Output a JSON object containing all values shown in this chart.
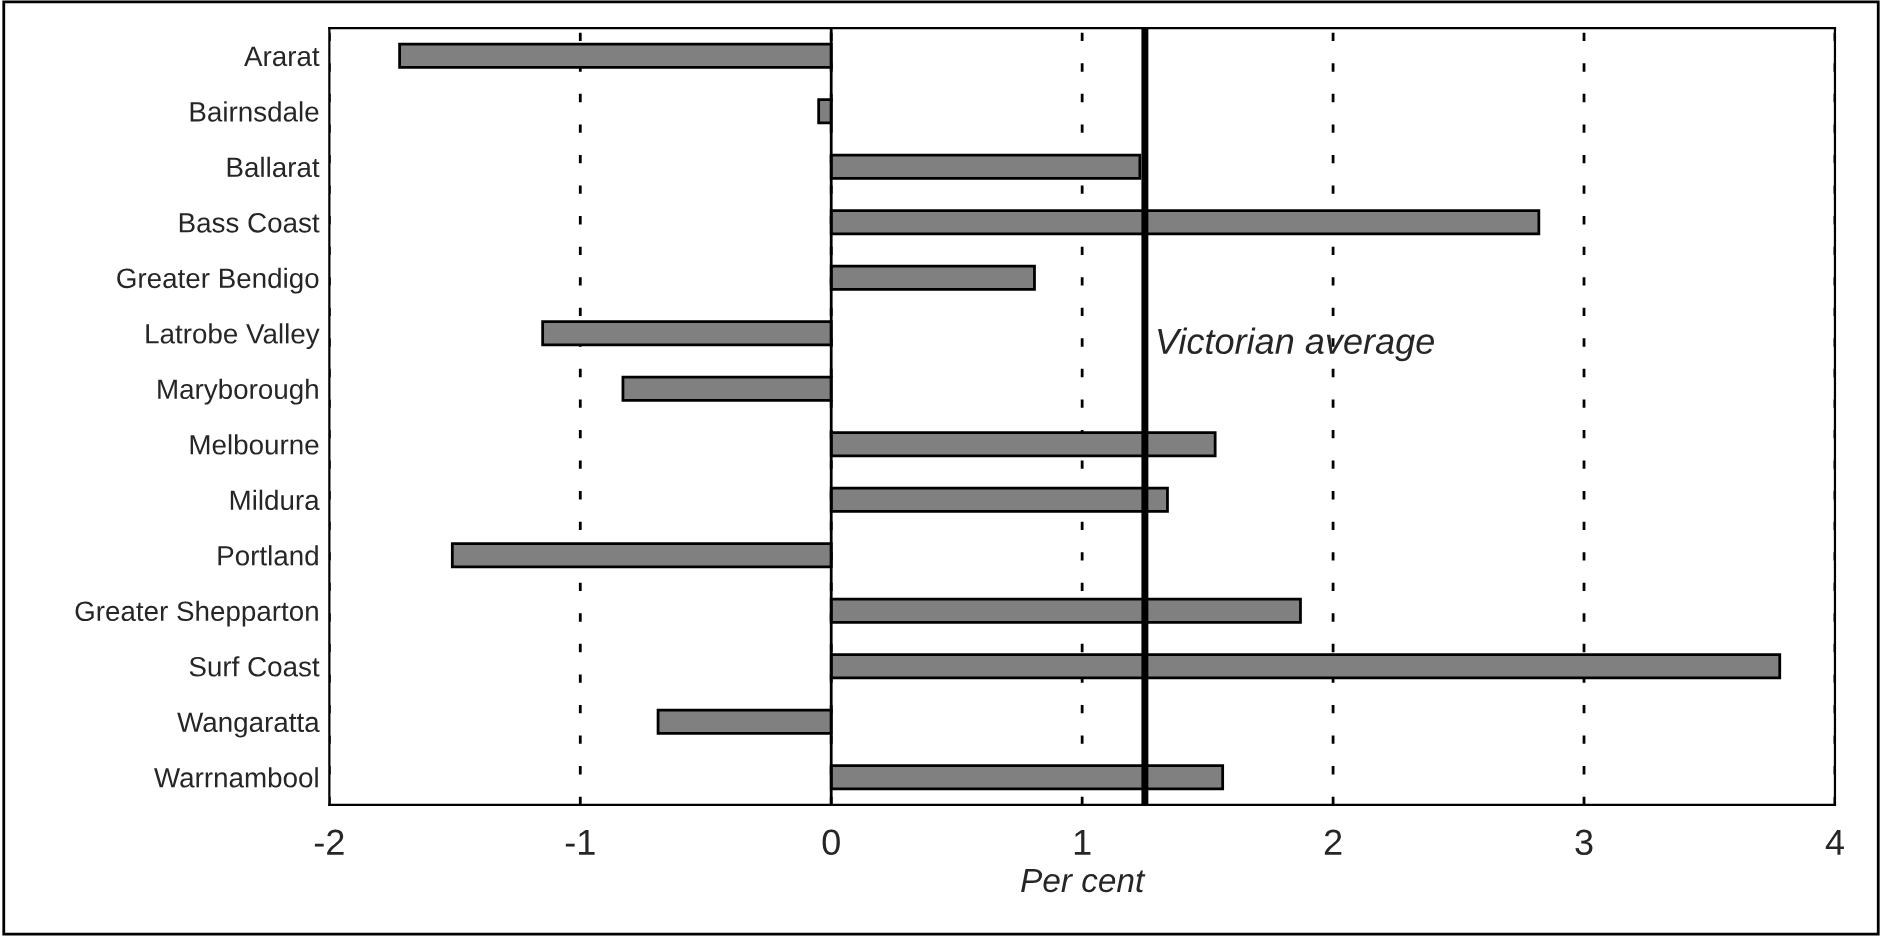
{
  "chart_data": {
    "type": "bar",
    "orientation": "horizontal",
    "xlabel": "Per cent",
    "categories": [
      "Ararat",
      "Bairnsdale",
      "Ballarat",
      "Bass Coast",
      "Greater Bendigo",
      "Latrobe Valley",
      "Maryborough",
      "Melbourne",
      "Mildura",
      "Portland",
      "Greater Shepparton",
      "Surf Coast",
      "Wangaratta",
      "Warrnambool"
    ],
    "values": [
      -1.72,
      -0.05,
      1.23,
      2.82,
      0.81,
      -1.15,
      -0.83,
      1.53,
      1.34,
      -1.51,
      1.87,
      3.78,
      -0.69,
      1.56
    ],
    "color": "#808080",
    "xlim": [
      -2,
      4
    ],
    "xticks": [
      -2,
      -1,
      0,
      1,
      2,
      3,
      4
    ],
    "grid": "x",
    "legend": false,
    "ref_lines": [
      {
        "axis": "x",
        "value": 1.25,
        "label": "Victorian average",
        "color": "#000000",
        "line_style": "solid"
      }
    ]
  }
}
